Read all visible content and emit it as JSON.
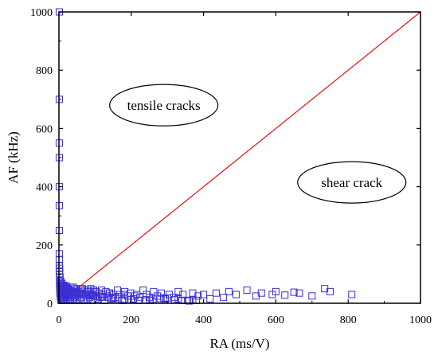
{
  "chart_data": {
    "type": "scatter",
    "title": "",
    "xlabel": "RA (ms/V)",
    "ylabel": "AF (kHz)",
    "xlim": [
      0,
      1000
    ],
    "ylim": [
      0,
      1000
    ],
    "xticks": [
      "0",
      "200",
      "400",
      "600",
      "800",
      "1000"
    ],
    "yticks": [
      "0",
      "200",
      "400",
      "600",
      "800",
      "1000"
    ],
    "grid": false,
    "legend": "none",
    "colors": {
      "points": "#3a2fd0",
      "line": "#e02020",
      "axis": "#000000"
    },
    "reference_line": {
      "x": [
        0,
        1000
      ],
      "y": [
        0,
        1000
      ]
    },
    "annotations": [
      {
        "text": "tensile cracks",
        "x": 290,
        "y": 680
      },
      {
        "text": "shear crack",
        "x": 810,
        "y": 415
      }
    ],
    "series": [
      {
        "marker": "open-square",
        "x": [
          1,
          1,
          1,
          1,
          1,
          1,
          1,
          1,
          1,
          1,
          1,
          2,
          2,
          2,
          2,
          2,
          2,
          3,
          3,
          3,
          3,
          4,
          4,
          4,
          5,
          5,
          5,
          6,
          6,
          7,
          7,
          8,
          8,
          9,
          10,
          10,
          11,
          12,
          12,
          13,
          14,
          15,
          16,
          17,
          18,
          19,
          20,
          21,
          22,
          24,
          25,
          26,
          28,
          29,
          30,
          32,
          33,
          35,
          36,
          38,
          40,
          42,
          44,
          46,
          48,
          50,
          52,
          55,
          58,
          60,
          62,
          65,
          68,
          70,
          72,
          75,
          78,
          80,
          82,
          85,
          88,
          90,
          93,
          96,
          100,
          103,
          106,
          110,
          114,
          118,
          122,
          126,
          130,
          135,
          140,
          145,
          150,
          156,
          162,
          168,
          175,
          182,
          190,
          198,
          206,
          215,
          224,
          233,
          242,
          252,
          262,
          272,
          283,
          294,
          305,
          318,
          330,
          343,
          356,
          370,
          385,
          400,
          418,
          435,
          455,
          470,
          490,
          520,
          545,
          560,
          590,
          600,
          625,
          650,
          665,
          700,
          735,
          750,
          810,
          3,
          5,
          8,
          12,
          15,
          20,
          25,
          30,
          35,
          45,
          55,
          65,
          75,
          85,
          95,
          105,
          120,
          135,
          150,
          165,
          180,
          200,
          220,
          240,
          260,
          280,
          300,
          320,
          340,
          360,
          380,
          20,
          40,
          60,
          80,
          100,
          140,
          180,
          210,
          250,
          290,
          330,
          370
        ],
        "y": [
          1000,
          700,
          550,
          500,
          400,
          335,
          250,
          170,
          150,
          130,
          110,
          100,
          90,
          80,
          70,
          60,
          120,
          55,
          45,
          40,
          35,
          65,
          30,
          25,
          50,
          20,
          15,
          60,
          10,
          45,
          25,
          35,
          15,
          55,
          40,
          20,
          30,
          50,
          10,
          25,
          45,
          15,
          35,
          20,
          55,
          30,
          10,
          40,
          25,
          50,
          15,
          35,
          20,
          45,
          30,
          10,
          55,
          25,
          40,
          15,
          35,
          20,
          50,
          30,
          10,
          45,
          25,
          40,
          15,
          35,
          20,
          50,
          30,
          10,
          45,
          25,
          40,
          15,
          35,
          20,
          50,
          30,
          10,
          45,
          25,
          40,
          15,
          35,
          20,
          45,
          30,
          10,
          40,
          25,
          35,
          15,
          30,
          20,
          45,
          30,
          10,
          40,
          25,
          35,
          15,
          30,
          20,
          45,
          30,
          10,
          40,
          25,
          35,
          15,
          30,
          20,
          40,
          30,
          10,
          35,
          25,
          30,
          15,
          35,
          20,
          40,
          30,
          45,
          25,
          35,
          30,
          40,
          28,
          38,
          35,
          25,
          50,
          40,
          30,
          90,
          75,
          68,
          62,
          58,
          52,
          48,
          44,
          40,
          38,
          35,
          32,
          30,
          28,
          26,
          24,
          22,
          20,
          18,
          16,
          14,
          12,
          10,
          12,
          14,
          16,
          18,
          12,
          10,
          8,
          10,
          60,
          55,
          50,
          45,
          40,
          35,
          30,
          25,
          20,
          18,
          15,
          12
        ]
      }
    ]
  }
}
